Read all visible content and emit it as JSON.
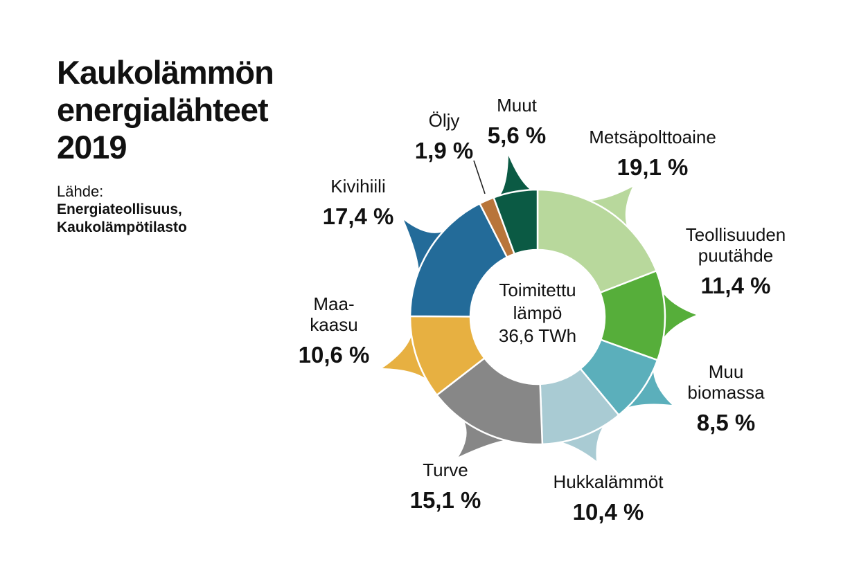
{
  "title": {
    "lines": [
      "Kaukolämmön",
      "energialähteet",
      "2019"
    ]
  },
  "source": {
    "label": "Lähde:",
    "lines": [
      "Energiateollisuus,",
      "Kaukolämpötilasto"
    ]
  },
  "center": {
    "lines": [
      "Toimitettu",
      "lämpö",
      "36,6 TWh"
    ]
  },
  "chart_data": {
    "type": "pie",
    "subtype": "donut",
    "title": "Kaukolämmön energialähteet 2019",
    "total": "36,6 TWh",
    "unit": "%",
    "slices": [
      {
        "name": "Metsäpolttoaine",
        "name_lines": [
          "Metsäpolttoaine"
        ],
        "value": 19.1,
        "value_label": "19,1 %",
        "color": "#b8d89c"
      },
      {
        "name": "Teollisuuden puutähde",
        "name_lines": [
          "Teollisuuden",
          "puutähde"
        ],
        "value": 11.4,
        "value_label": "11,4 %",
        "color": "#56ae3a"
      },
      {
        "name": "Muu biomassa",
        "name_lines": [
          "Muu",
          "biomassa"
        ],
        "value": 8.5,
        "value_label": "8,5 %",
        "color": "#5bafbb"
      },
      {
        "name": "Hukkalämmöt",
        "name_lines": [
          "Hukkalämmöt"
        ],
        "value": 10.4,
        "value_label": "10,4 %",
        "color": "#a9cbd3"
      },
      {
        "name": "Turve",
        "name_lines": [
          "Turve"
        ],
        "value": 15.1,
        "value_label": "15,1 %",
        "color": "#878787"
      },
      {
        "name": "Maakaasu",
        "name_lines": [
          "Maa-",
          "kaasu"
        ],
        "value": 10.6,
        "value_label": "10,6 %",
        "color": "#e7b041"
      },
      {
        "name": "Kivihiili",
        "name_lines": [
          "Kivihiili"
        ],
        "value": 17.4,
        "value_label": "17,4 %",
        "color": "#236b99"
      },
      {
        "name": "Öljy",
        "name_lines": [
          "Öljy"
        ],
        "value": 1.9,
        "value_label": "1,9 %",
        "color": "#b8753a"
      },
      {
        "name": "Muut",
        "name_lines": [
          "Muut"
        ],
        "value": 5.6,
        "value_label": "5,6 %",
        "color": "#0b5a44"
      }
    ]
  }
}
